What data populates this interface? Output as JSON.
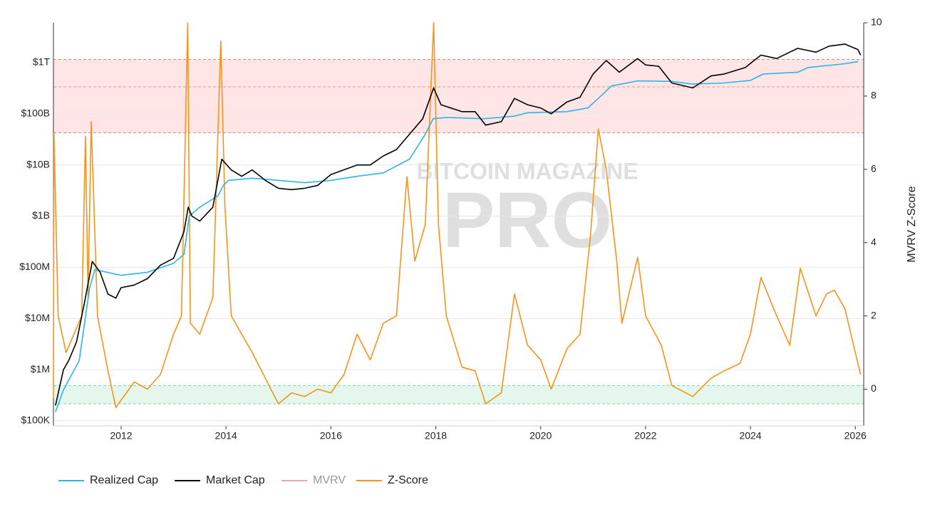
{
  "chart_data": {
    "type": "line",
    "y2_title": "MVRV Z-Score",
    "watermark": [
      "BITCOIN MAGAZINE",
      "PRO"
    ],
    "xlim": [
      2010.71,
      2026.16
    ],
    "xticks": [
      2012,
      2014,
      2016,
      2018,
      2020,
      2022,
      2024,
      2026
    ],
    "ylog": true,
    "ylim": [
      80000,
      6000000000000
    ],
    "yticks": [
      {
        "value": 100000,
        "label": "$100K"
      },
      {
        "value": 1000000,
        "label": "$1M"
      },
      {
        "value": 10000000,
        "label": "$10M"
      },
      {
        "value": 100000000,
        "label": "$100M"
      },
      {
        "value": 1000000000,
        "label": "$1B"
      },
      {
        "value": 10000000000,
        "label": "$10B"
      },
      {
        "value": 100000000000,
        "label": "$100B"
      },
      {
        "value": 1000000000000,
        "label": "$1T"
      }
    ],
    "y2lim": [
      -1,
      10
    ],
    "y2ticks": [
      0,
      2,
      4,
      6,
      8,
      10
    ],
    "grid": true,
    "bands": [
      {
        "from": 7,
        "to": 9,
        "color": "#ff0000",
        "axis": "y2"
      },
      {
        "from": -0.4,
        "to": 0.1,
        "color": "#00b050",
        "axis": "y2"
      }
    ],
    "reference_lines": [
      8.25
    ],
    "series": [
      {
        "name": "Realized Cap",
        "color": "#2bb5e8",
        "x": [
          2010.75,
          2010.9,
          2011.2,
          2011.4,
          2011.5,
          2012.0,
          2012.5,
          2013.0,
          2013.2,
          2013.3,
          2013.5,
          2013.85,
          2013.95,
          2014.05,
          2014.5,
          2015.0,
          2015.5,
          2016.0,
          2016.5,
          2017.0,
          2017.5,
          2017.8,
          2017.95,
          2018.2,
          2018.9,
          2019.5,
          2019.75,
          2020.5,
          2020.9,
          2021.1,
          2021.35,
          2021.85,
          2022.5,
          2022.9,
          2023.5,
          2024.0,
          2024.25,
          2024.9,
          2025.1,
          2025.8,
          2026.05
        ],
        "values": [
          150000,
          400000,
          1500000,
          40000000,
          90000000,
          70000000,
          80000000,
          120000000,
          180000000,
          1000000000,
          1500000000,
          2500000000,
          4000000000,
          5000000000,
          5500000000,
          5000000000,
          4500000000,
          5000000000,
          6000000000,
          7000000000,
          13000000000,
          40000000000,
          80000000000,
          85000000000,
          80000000000,
          90000000000,
          105000000000,
          110000000000,
          130000000000,
          200000000000,
          350000000000,
          440000000000,
          430000000000,
          380000000000,
          400000000000,
          450000000000,
          600000000000,
          650000000000,
          800000000000,
          950000000000,
          1050000000000
        ]
      },
      {
        "name": "Market Cap",
        "color": "#000000",
        "x": [
          2010.75,
          2010.9,
          2011.0,
          2011.15,
          2011.3,
          2011.45,
          2011.6,
          2011.75,
          2011.9,
          2012.0,
          2012.25,
          2012.5,
          2012.75,
          2013.0,
          2013.2,
          2013.28,
          2013.35,
          2013.5,
          2013.75,
          2013.92,
          2014.1,
          2014.3,
          2014.5,
          2014.75,
          2015.0,
          2015.25,
          2015.5,
          2015.75,
          2016.0,
          2016.5,
          2016.75,
          2017.0,
          2017.25,
          2017.5,
          2017.75,
          2017.96,
          2018.1,
          2018.5,
          2018.75,
          2018.95,
          2019.25,
          2019.5,
          2019.75,
          2020.0,
          2020.2,
          2020.5,
          2020.75,
          2021.0,
          2021.25,
          2021.5,
          2021.85,
          2022.0,
          2022.25,
          2022.5,
          2022.9,
          2023.25,
          2023.5,
          2023.9,
          2024.2,
          2024.5,
          2024.9,
          2025.25,
          2025.5,
          2025.8,
          2026.05,
          2026.1
        ],
        "values": [
          200000,
          1000000,
          1500000,
          3500000,
          20000000,
          130000000,
          80000000,
          30000000,
          25000000,
          40000000,
          45000000,
          60000000,
          110000000,
          150000000,
          500000000,
          1500000000,
          1000000000,
          800000000,
          1500000000,
          13000000000,
          8000000000,
          6000000000,
          8000000000,
          5000000000,
          3500000000,
          3300000000,
          3500000000,
          4000000000,
          6500000000,
          10000000000,
          10000000000,
          15000000000,
          20000000000,
          40000000000,
          80000000000,
          320000000000,
          150000000000,
          110000000000,
          110000000000,
          60000000000,
          70000000000,
          200000000000,
          150000000000,
          130000000000,
          100000000000,
          170000000000,
          210000000000,
          600000000000,
          1100000000000,
          650000000000,
          1200000000000,
          900000000000,
          850000000000,
          400000000000,
          320000000000,
          550000000000,
          600000000000,
          800000000000,
          1400000000000,
          1200000000000,
          1900000000000,
          1600000000000,
          2100000000000,
          2300000000000,
          1800000000000,
          1400000000000
        ]
      },
      {
        "name": "MVRV",
        "color": "#f4a3a3",
        "hidden": true
      },
      {
        "name": "Z-Score",
        "color": "#f7931a",
        "axis": "y2",
        "x": [
          2010.71,
          2010.72,
          2010.8,
          2010.95,
          2011.1,
          2011.25,
          2011.32,
          2011.37,
          2011.43,
          2011.55,
          2011.75,
          2011.9,
          2012.0,
          2012.25,
          2012.5,
          2012.75,
          2013.0,
          2013.15,
          2013.27,
          2013.32,
          2013.5,
          2013.75,
          2013.9,
          2013.98,
          2014.1,
          2014.3,
          2014.5,
          2014.75,
          2015.0,
          2015.25,
          2015.5,
          2015.75,
          2016.0,
          2016.25,
          2016.5,
          2016.75,
          2017.0,
          2017.25,
          2017.45,
          2017.6,
          2017.8,
          2017.96,
          2018.05,
          2018.2,
          2018.5,
          2018.75,
          2018.95,
          2019.25,
          2019.5,
          2019.75,
          2020.0,
          2020.2,
          2020.5,
          2020.75,
          2020.95,
          2021.1,
          2021.25,
          2021.45,
          2021.55,
          2021.85,
          2022.0,
          2022.3,
          2022.5,
          2022.9,
          2023.25,
          2023.5,
          2023.8,
          2024.0,
          2024.2,
          2024.5,
          2024.75,
          2024.95,
          2025.25,
          2025.45,
          2025.6,
          2025.8,
          2025.95,
          2026.1
        ],
        "values": [
          -0.25,
          7,
          2.0,
          1.0,
          1.5,
          2.0,
          6.9,
          2.5,
          7.3,
          2.0,
          0.5,
          -0.5,
          -0.3,
          0.2,
          0,
          0.4,
          1.5,
          2.0,
          10,
          1.8,
          1.5,
          2.5,
          9.5,
          5,
          2,
          1.5,
          1,
          0.3,
          -0.4,
          -0.1,
          -0.2,
          0,
          -0.1,
          0.4,
          1.5,
          0.8,
          1.8,
          2.0,
          5.8,
          3.5,
          4.5,
          10,
          4.5,
          2.0,
          0.6,
          0.5,
          -0.4,
          -0.1,
          2.6,
          1.2,
          0.8,
          0,
          1.1,
          1.5,
          4.2,
          7.1,
          6,
          3.5,
          1.8,
          3.6,
          2.0,
          1.2,
          0.1,
          -0.2,
          0.3,
          0.5,
          0.7,
          1.5,
          3.05,
          2.0,
          1.2,
          3.3,
          2.0,
          2.6,
          2.7,
          2.2,
          1.3,
          0.4
        ]
      }
    ]
  }
}
